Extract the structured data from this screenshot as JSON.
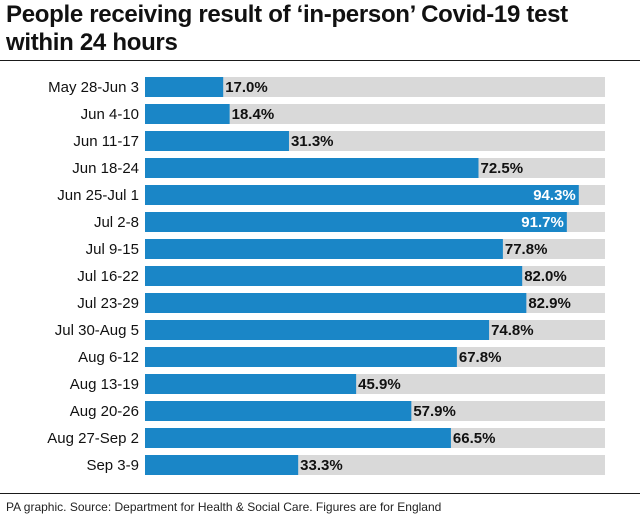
{
  "chart_data": {
    "type": "bar",
    "orientation": "horizontal",
    "title": "People receiving result of ‘in-person’ Covid-19 test within 24 hours",
    "categories": [
      "May 28-Jun 3",
      "Jun 4-10",
      "Jun 11-17",
      "Jun 18-24",
      "Jun 25-Jul 1",
      "Jul 2-8",
      "Jul 9-15",
      "Jul 16-22",
      "Jul 23-29",
      "Jul 30-Aug 5",
      "Aug 6-12",
      "Aug 13-19",
      "Aug 20-26",
      "Aug 27-Sep 2",
      "Sep 3-9"
    ],
    "values": [
      17.0,
      18.4,
      31.3,
      72.5,
      94.3,
      91.7,
      77.8,
      82.0,
      82.9,
      74.8,
      67.8,
      45.9,
      57.9,
      66.5,
      33.3
    ],
    "value_labels": [
      "17.0%",
      "18.4%",
      "31.3%",
      "72.5%",
      "94.3%",
      "91.7%",
      "77.8%",
      "82.0%",
      "82.9%",
      "74.8%",
      "67.8%",
      "45.9%",
      "57.9%",
      "66.5%",
      "33.3%"
    ],
    "xlim": [
      0,
      100
    ],
    "unit": "%",
    "xlabel": "",
    "ylabel": ""
  },
  "colors": {
    "bar": "#1a86c7",
    "track": "#d9d9d9",
    "label_on_bar": "#ffffff",
    "label_off_bar": "#111111"
  },
  "source": "PA graphic. Source: Department for Health & Social Care. Figures are for England"
}
